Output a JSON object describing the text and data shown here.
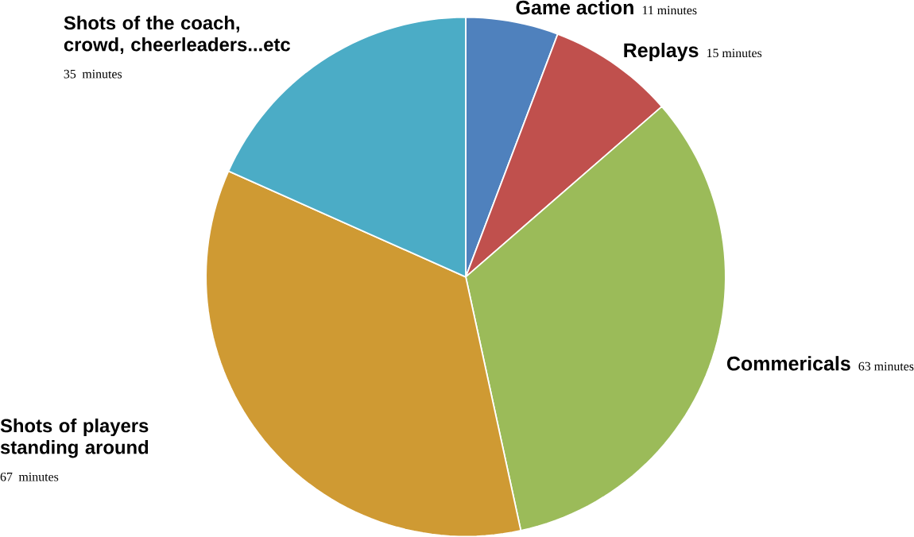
{
  "chart_data": {
    "type": "pie",
    "categories": [
      "Game action",
      "Replays",
      "Commericals",
      "Shots of players standing around",
      "Shots of the coach, crowd, cheerleaders...etc"
    ],
    "values": [
      11,
      15,
      63,
      67,
      35
    ],
    "colors": [
      "#4f81bd",
      "#c0504d",
      "#9bbb59",
      "#cf9a33",
      "#4bacc6"
    ],
    "value_labels": [
      "11 minutes",
      "15 minutes",
      "63 minutes",
      "67 minutes",
      "35 minutes"
    ]
  }
}
